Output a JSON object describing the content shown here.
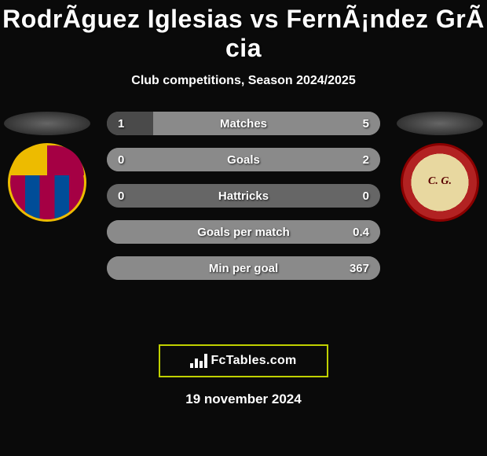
{
  "header": {
    "title": "RodrÃ­guez Iglesias vs FernÃ¡ndez GrÃ cia",
    "subtitle": "Club competitions, Season 2024/2025"
  },
  "players": {
    "left": {
      "name": "RodrÃ­guez Iglesias",
      "club_badge": "barca"
    },
    "right": {
      "name": "FernÃ¡ndez GrÃ cia",
      "club_badge": "nastic"
    }
  },
  "colors": {
    "background": "#0a0a0a",
    "text": "#ffffff",
    "bar_neutral": "#666666",
    "bar_left": "#4a4a4a",
    "bar_right": "#8a8a8a",
    "fctables_border": "#c0d000"
  },
  "stats": [
    {
      "label": "Matches",
      "left_val": "1",
      "right_val": "5",
      "left_pct": 17,
      "right_pct": 83
    },
    {
      "label": "Goals",
      "left_val": "0",
      "right_val": "2",
      "left_pct": 0,
      "right_pct": 100
    },
    {
      "label": "Hattricks",
      "left_val": "0",
      "right_val": "0",
      "left_pct": 0,
      "right_pct": 0
    },
    {
      "label": "Goals per match",
      "left_val": "",
      "right_val": "0.4",
      "left_pct": 0,
      "right_pct": 100
    },
    {
      "label": "Min per goal",
      "left_val": "",
      "right_val": "367",
      "left_pct": 0,
      "right_pct": 100
    }
  ],
  "branding": {
    "label": "FcTables.com"
  },
  "date": "19 november 2024"
}
